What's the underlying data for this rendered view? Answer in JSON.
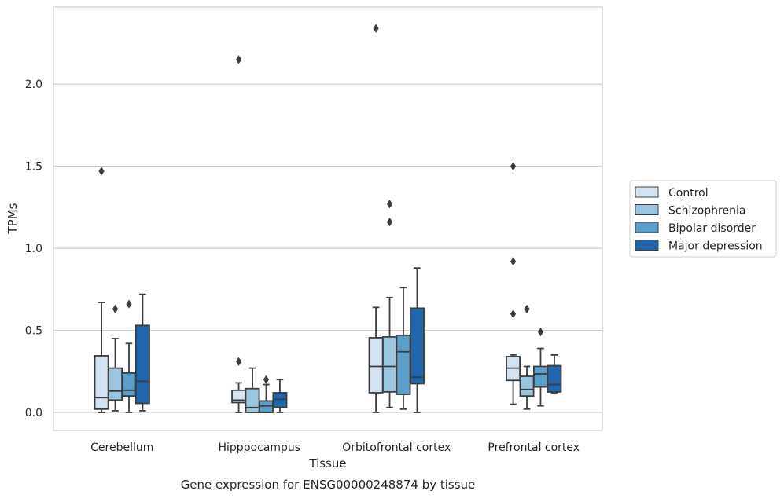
{
  "caption": "Gene expression for ENSG00000248874 by tissue",
  "chart_data": {
    "type": "box",
    "title": "",
    "xlabel": "Tissue",
    "ylabel": "TPMs",
    "ylim": [
      -0.11,
      2.47
    ],
    "yticks": [
      0.0,
      0.5,
      1.0,
      1.5,
      2.0
    ],
    "ytick_labels": [
      "0.0",
      "0.5",
      "1.0",
      "1.5",
      "2.0"
    ],
    "grid": "horizontal",
    "legend_position": "right",
    "categories": [
      "Cerebellum",
      "Hipppocampus",
      "Orbitofrontal cortex",
      "Prefrontal cortex"
    ],
    "series": [
      {
        "name": "Control",
        "color": "#d3e2f1",
        "boxes": [
          {
            "whislo": 0.0,
            "q1": 0.02,
            "med": 0.09,
            "q3": 0.345,
            "whishi": 0.67,
            "fliers": [
              1.47
            ]
          },
          {
            "whislo": 0.0,
            "q1": 0.06,
            "med": 0.075,
            "q3": 0.135,
            "whishi": 0.18,
            "fliers": [
              0.31,
              2.15
            ]
          },
          {
            "whislo": 0.0,
            "q1": 0.12,
            "med": 0.28,
            "q3": 0.455,
            "whishi": 0.64,
            "fliers": [
              2.34
            ]
          },
          {
            "whislo": 0.05,
            "q1": 0.195,
            "med": 0.27,
            "q3": 0.34,
            "whishi": 0.35,
            "fliers": [
              0.6,
              0.92,
              1.5
            ]
          }
        ]
      },
      {
        "name": "Schizophrenia",
        "color": "#9bc4de",
        "boxes": [
          {
            "whislo": 0.01,
            "q1": 0.075,
            "med": 0.13,
            "q3": 0.27,
            "whishi": 0.45,
            "fliers": [
              0.63
            ]
          },
          {
            "whislo": 0.0,
            "q1": 0.0,
            "med": 0.03,
            "q3": 0.145,
            "whishi": 0.27,
            "fliers": []
          },
          {
            "whislo": 0.03,
            "q1": 0.125,
            "med": 0.28,
            "q3": 0.46,
            "whishi": 0.7,
            "fliers": [
              1.16,
              1.27
            ]
          },
          {
            "whislo": 0.02,
            "q1": 0.1,
            "med": 0.14,
            "q3": 0.22,
            "whishi": 0.28,
            "fliers": [
              0.63
            ]
          }
        ]
      },
      {
        "name": "Bipolar disorder",
        "color": "#5a9ec9",
        "boxes": [
          {
            "whislo": 0.0,
            "q1": 0.1,
            "med": 0.135,
            "q3": 0.24,
            "whishi": 0.42,
            "fliers": [
              0.66
            ]
          },
          {
            "whislo": 0.0,
            "q1": 0.0,
            "med": 0.04,
            "q3": 0.07,
            "whishi": 0.17,
            "fliers": [
              0.2
            ]
          },
          {
            "whislo": 0.02,
            "q1": 0.11,
            "med": 0.37,
            "q3": 0.47,
            "whishi": 0.76,
            "fliers": []
          },
          {
            "whislo": 0.04,
            "q1": 0.155,
            "med": 0.235,
            "q3": 0.28,
            "whishi": 0.39,
            "fliers": [
              0.49
            ]
          }
        ]
      },
      {
        "name": "Major depression",
        "color": "#2166ac",
        "boxes": [
          {
            "whislo": 0.01,
            "q1": 0.055,
            "med": 0.19,
            "q3": 0.53,
            "whishi": 0.72,
            "fliers": []
          },
          {
            "whislo": 0.0,
            "q1": 0.03,
            "med": 0.08,
            "q3": 0.12,
            "whishi": 0.2,
            "fliers": []
          },
          {
            "whislo": 0.0,
            "q1": 0.175,
            "med": 0.215,
            "q3": 0.635,
            "whishi": 0.88,
            "fliers": []
          },
          {
            "whislo": 0.12,
            "q1": 0.125,
            "med": 0.17,
            "q3": 0.285,
            "whishi": 0.35,
            "fliers": []
          }
        ]
      }
    ]
  },
  "colors": {
    "grid": "#cccccc",
    "frame": "#cccccc",
    "box_edge": "#3d3d3d",
    "text": "#262626"
  }
}
